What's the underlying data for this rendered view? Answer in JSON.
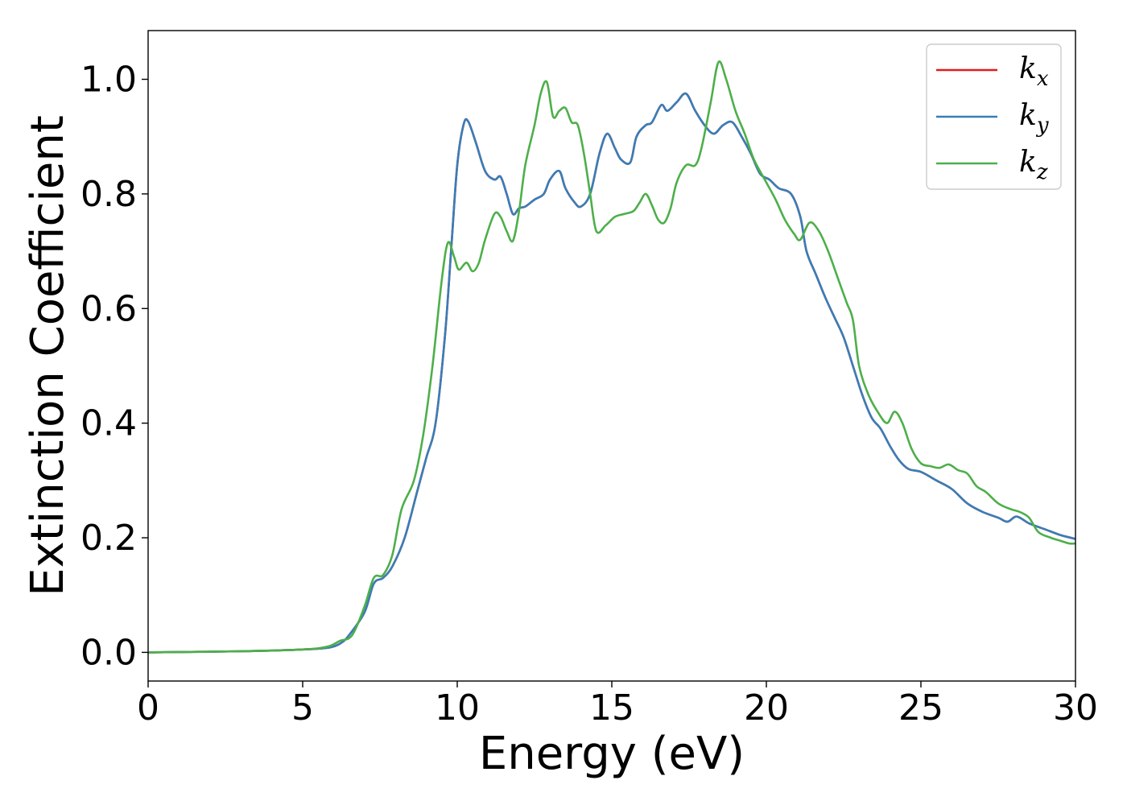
{
  "chart_data": {
    "type": "line",
    "title": "",
    "xlabel": "Energy (eV)",
    "ylabel": "Extinction Coefficient",
    "xlim": [
      0,
      30
    ],
    "ylim": [
      -0.05,
      1.085
    ],
    "xticks": [
      0,
      5,
      10,
      15,
      20,
      25,
      30
    ],
    "yticks": [
      0.0,
      0.2,
      0.4,
      0.6,
      0.8,
      1.0
    ],
    "xtick_labels": [
      "0",
      "5",
      "10",
      "15",
      "20",
      "25",
      "30"
    ],
    "ytick_labels": [
      "0.0",
      "0.2",
      "0.4",
      "0.6",
      "0.8",
      "1.0"
    ],
    "grid": false,
    "legend": {
      "position": "top-right",
      "entries": [
        {
          "base": "k",
          "sub": "x",
          "color": "#e41a1c"
        },
        {
          "base": "k",
          "sub": "y",
          "color": "#377eb8"
        },
        {
          "base": "k",
          "sub": "z",
          "color": "#4daf4a"
        }
      ]
    },
    "series": [
      {
        "name": "k_x",
        "color": "#e41a1c",
        "x": [
          0,
          3,
          5,
          5.8,
          6.2,
          6.5,
          7.0,
          7.3,
          7.6,
          7.9,
          8.3,
          8.7,
          9.0,
          9.3,
          9.6,
          9.8,
          10.0,
          10.2,
          10.35,
          10.6,
          10.9,
          11.2,
          11.4,
          11.6,
          11.8,
          12.0,
          12.2,
          12.5,
          12.8,
          13.0,
          13.3,
          13.5,
          13.8,
          14.0,
          14.3,
          14.6,
          14.85,
          15.1,
          15.3,
          15.6,
          15.8,
          16.1,
          16.3,
          16.6,
          16.8,
          17.1,
          17.4,
          17.7,
          18.0,
          18.3,
          18.6,
          18.9,
          19.2,
          19.5,
          19.8,
          20.1,
          20.4,
          20.8,
          21.1,
          21.3,
          21.6,
          21.9,
          22.2,
          22.5,
          22.8,
          23.1,
          23.4,
          23.7,
          24.0,
          24.3,
          24.6,
          25.0,
          25.5,
          26.0,
          26.5,
          27.0,
          27.5,
          27.8,
          28.1,
          28.5,
          29.0,
          29.5,
          30.0
        ],
        "y": [
          0.0,
          0.002,
          0.005,
          0.008,
          0.015,
          0.03,
          0.07,
          0.12,
          0.13,
          0.15,
          0.2,
          0.28,
          0.34,
          0.4,
          0.55,
          0.7,
          0.85,
          0.92,
          0.927,
          0.89,
          0.84,
          0.825,
          0.83,
          0.8,
          0.765,
          0.775,
          0.778,
          0.79,
          0.8,
          0.825,
          0.84,
          0.81,
          0.785,
          0.778,
          0.8,
          0.87,
          0.905,
          0.88,
          0.86,
          0.855,
          0.9,
          0.92,
          0.925,
          0.955,
          0.945,
          0.96,
          0.975,
          0.945,
          0.92,
          0.905,
          0.92,
          0.925,
          0.9,
          0.87,
          0.835,
          0.825,
          0.81,
          0.8,
          0.76,
          0.7,
          0.66,
          0.62,
          0.585,
          0.55,
          0.5,
          0.45,
          0.41,
          0.39,
          0.36,
          0.335,
          0.32,
          0.315,
          0.3,
          0.285,
          0.26,
          0.245,
          0.235,
          0.228,
          0.237,
          0.225,
          0.215,
          0.205,
          0.198
        ]
      },
      {
        "name": "k_y",
        "color": "#377eb8",
        "x": [
          0,
          3,
          5,
          5.8,
          6.2,
          6.5,
          7.0,
          7.3,
          7.6,
          7.9,
          8.3,
          8.7,
          9.0,
          9.3,
          9.6,
          9.8,
          10.0,
          10.2,
          10.35,
          10.6,
          10.9,
          11.2,
          11.4,
          11.6,
          11.8,
          12.0,
          12.2,
          12.5,
          12.8,
          13.0,
          13.3,
          13.5,
          13.8,
          14.0,
          14.3,
          14.6,
          14.85,
          15.1,
          15.3,
          15.6,
          15.8,
          16.1,
          16.3,
          16.6,
          16.8,
          17.1,
          17.4,
          17.7,
          18.0,
          18.3,
          18.6,
          18.9,
          19.2,
          19.5,
          19.8,
          20.1,
          20.4,
          20.8,
          21.1,
          21.3,
          21.6,
          21.9,
          22.2,
          22.5,
          22.8,
          23.1,
          23.4,
          23.7,
          24.0,
          24.3,
          24.6,
          25.0,
          25.5,
          26.0,
          26.5,
          27.0,
          27.5,
          27.8,
          28.1,
          28.5,
          29.0,
          29.5,
          30.0
        ],
        "y": [
          0.0,
          0.002,
          0.005,
          0.008,
          0.015,
          0.03,
          0.07,
          0.12,
          0.13,
          0.15,
          0.2,
          0.28,
          0.34,
          0.4,
          0.55,
          0.7,
          0.85,
          0.92,
          0.927,
          0.89,
          0.84,
          0.825,
          0.83,
          0.8,
          0.765,
          0.775,
          0.778,
          0.79,
          0.8,
          0.825,
          0.84,
          0.81,
          0.785,
          0.778,
          0.8,
          0.87,
          0.905,
          0.88,
          0.86,
          0.855,
          0.9,
          0.92,
          0.925,
          0.955,
          0.945,
          0.96,
          0.975,
          0.945,
          0.92,
          0.905,
          0.92,
          0.925,
          0.9,
          0.87,
          0.835,
          0.825,
          0.81,
          0.8,
          0.76,
          0.7,
          0.66,
          0.62,
          0.585,
          0.55,
          0.5,
          0.45,
          0.41,
          0.39,
          0.36,
          0.335,
          0.32,
          0.315,
          0.3,
          0.285,
          0.26,
          0.245,
          0.235,
          0.228,
          0.237,
          0.225,
          0.215,
          0.205,
          0.198
        ]
      },
      {
        "name": "k_z",
        "color": "#4daf4a",
        "x": [
          0,
          3,
          5,
          5.8,
          6.2,
          6.6,
          7.0,
          7.3,
          7.6,
          7.9,
          8.2,
          8.6,
          8.9,
          9.2,
          9.5,
          9.7,
          9.9,
          10.05,
          10.3,
          10.5,
          10.7,
          10.9,
          11.2,
          11.4,
          11.6,
          11.8,
          12.0,
          12.2,
          12.5,
          12.7,
          12.9,
          13.1,
          13.3,
          13.5,
          13.7,
          13.9,
          14.1,
          14.3,
          14.5,
          14.8,
          15.1,
          15.4,
          15.7,
          15.9,
          16.1,
          16.3,
          16.5,
          16.7,
          16.9,
          17.1,
          17.4,
          17.7,
          17.9,
          18.2,
          18.45,
          18.7,
          19.0,
          19.3,
          19.6,
          20.0,
          20.3,
          20.6,
          20.9,
          21.1,
          21.4,
          21.7,
          22.0,
          22.3,
          22.6,
          22.8,
          23.0,
          23.3,
          23.6,
          23.9,
          24.15,
          24.4,
          24.7,
          25.0,
          25.3,
          25.6,
          25.9,
          26.2,
          26.5,
          26.8,
          27.1,
          27.5,
          27.9,
          28.2,
          28.5,
          28.8,
          29.2,
          29.5,
          29.8,
          30.0
        ],
        "y": [
          0.0,
          0.002,
          0.005,
          0.01,
          0.02,
          0.03,
          0.08,
          0.13,
          0.135,
          0.17,
          0.25,
          0.3,
          0.38,
          0.5,
          0.65,
          0.715,
          0.69,
          0.668,
          0.68,
          0.665,
          0.68,
          0.72,
          0.765,
          0.76,
          0.735,
          0.718,
          0.77,
          0.85,
          0.92,
          0.975,
          0.995,
          0.935,
          0.945,
          0.95,
          0.925,
          0.92,
          0.87,
          0.8,
          0.735,
          0.745,
          0.76,
          0.765,
          0.77,
          0.785,
          0.8,
          0.78,
          0.755,
          0.75,
          0.775,
          0.82,
          0.85,
          0.85,
          0.88,
          0.96,
          1.03,
          1.0,
          0.945,
          0.905,
          0.86,
          0.82,
          0.79,
          0.755,
          0.73,
          0.72,
          0.75,
          0.735,
          0.7,
          0.655,
          0.61,
          0.58,
          0.5,
          0.45,
          0.42,
          0.4,
          0.42,
          0.4,
          0.355,
          0.33,
          0.325,
          0.322,
          0.328,
          0.318,
          0.312,
          0.29,
          0.28,
          0.26,
          0.25,
          0.245,
          0.235,
          0.21,
          0.2,
          0.195,
          0.19,
          0.19
        ]
      }
    ]
  }
}
